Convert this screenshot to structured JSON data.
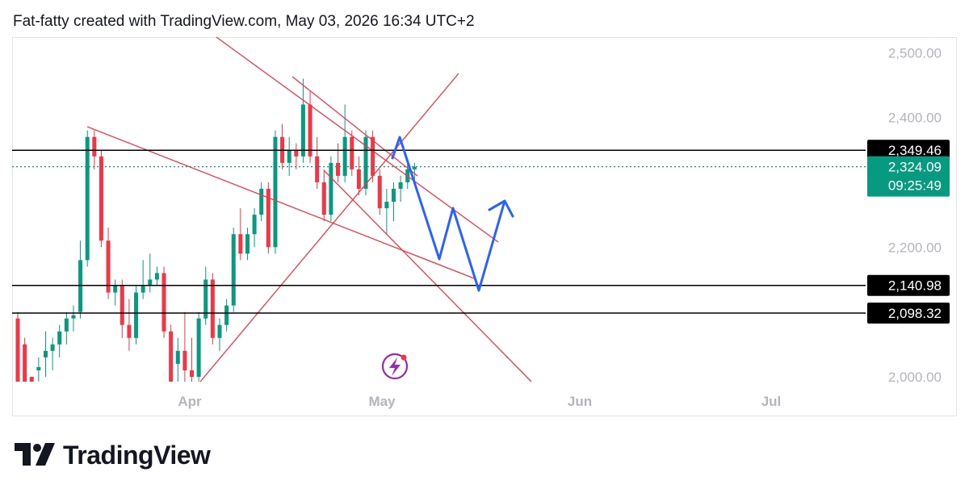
{
  "header": {
    "attribution": "Fat-fatty created with TradingView.com, May 03, 2026 16:34 UTC+2"
  },
  "footer": {
    "brand": "TradingView"
  },
  "colors": {
    "up": "#089981",
    "down": "#f23645",
    "trendline": "#f23645",
    "projection": "#2962ff",
    "level_line": "#000000",
    "current_price": "#089981",
    "axis_text": "#b2b5be"
  },
  "chart_data": {
    "type": "candlestick",
    "y_axis": {
      "ticks": [
        2000,
        2200,
        2400,
        2500
      ],
      "tick_labels": [
        "2,000.00",
        "2,200.00",
        "2,400.00",
        "2,500.00"
      ],
      "position": "right"
    },
    "x_axis": {
      "tick_labels": [
        "Apr",
        "May",
        "Jun",
        "Jul"
      ]
    },
    "horizontal_levels": [
      {
        "value": 2349.46,
        "label": "2,349.46"
      },
      {
        "value": 2140.98,
        "label": "2,140.98"
      },
      {
        "value": 2098.32,
        "label": "2,098.32"
      }
    ],
    "current_price": {
      "value": 2324.09,
      "label": "2,324.09",
      "countdown": "09:25:49"
    },
    "candles": [
      [
        2090,
        2100,
        1990,
        1990
      ],
      [
        2050,
        2060,
        1990,
        1990
      ],
      [
        2000,
        2000,
        1990,
        1990
      ],
      [
        2010,
        2030,
        1990,
        2015
      ],
      [
        2030,
        2070,
        2000,
        2040
      ],
      [
        2040,
        2060,
        2010,
        2050
      ],
      [
        2050,
        2080,
        2030,
        2070
      ],
      [
        2070,
        2100,
        2050,
        2090
      ],
      [
        2090,
        2110,
        2070,
        2095
      ],
      [
        2100,
        2210,
        2090,
        2180
      ],
      [
        2180,
        2380,
        2170,
        2370
      ],
      [
        2370,
        2380,
        2320,
        2340
      ],
      [
        2340,
        2350,
        2200,
        2210
      ],
      [
        2210,
        2230,
        2120,
        2130
      ],
      [
        2130,
        2150,
        2110,
        2140
      ],
      [
        2140,
        2150,
        2060,
        2080
      ],
      [
        2080,
        2120,
        2040,
        2060
      ],
      [
        2060,
        2140,
        2050,
        2130
      ],
      [
        2130,
        2180,
        2120,
        2140
      ],
      [
        2140,
        2190,
        2130,
        2150
      ],
      [
        2150,
        2170,
        2140,
        2160
      ],
      [
        2160,
        2170,
        2060,
        2070
      ],
      [
        2070,
        2080,
        1990,
        1990
      ],
      [
        2020,
        2060,
        1990,
        2040
      ],
      [
        2040,
        2100,
        1990,
        2010
      ],
      [
        2010,
        2060,
        1990,
        2000
      ],
      [
        2000,
        2100,
        1990,
        2090
      ],
      [
        2090,
        2170,
        2080,
        2150
      ],
      [
        2150,
        2160,
        2050,
        2060
      ],
      [
        2060,
        2090,
        2040,
        2080
      ],
      [
        2080,
        2120,
        2070,
        2110
      ],
      [
        2110,
        2230,
        2100,
        2220
      ],
      [
        2220,
        2260,
        2180,
        2190
      ],
      [
        2190,
        2230,
        2180,
        2220
      ],
      [
        2220,
        2260,
        2200,
        2250
      ],
      [
        2250,
        2300,
        2240,
        2290
      ],
      [
        2290,
        2300,
        2190,
        2200
      ],
      [
        2200,
        2380,
        2190,
        2370
      ],
      [
        2370,
        2390,
        2320,
        2330
      ],
      [
        2330,
        2370,
        2310,
        2350
      ],
      [
        2350,
        2360,
        2320,
        2340
      ],
      [
        2340,
        2460,
        2330,
        2420
      ],
      [
        2420,
        2440,
        2330,
        2340
      ],
      [
        2340,
        2370,
        2290,
        2300
      ],
      [
        2300,
        2320,
        2240,
        2250
      ],
      [
        2250,
        2340,
        2240,
        2330
      ],
      [
        2330,
        2360,
        2300,
        2310
      ],
      [
        2310,
        2420,
        2300,
        2370
      ],
      [
        2370,
        2380,
        2310,
        2320
      ],
      [
        2320,
        2340,
        2280,
        2290
      ],
      [
        2290,
        2380,
        2280,
        2370
      ],
      [
        2370,
        2380,
        2300,
        2310
      ],
      [
        2310,
        2320,
        2250,
        2260
      ],
      [
        2260,
        2290,
        2220,
        2270
      ],
      [
        2270,
        2300,
        2240,
        2290
      ],
      [
        2290,
        2310,
        2270,
        2300
      ],
      [
        2300,
        2330,
        2290,
        2320
      ],
      [
        2320,
        2330,
        2300,
        2324.09
      ]
    ],
    "grid": false,
    "logo_watermark": true
  }
}
